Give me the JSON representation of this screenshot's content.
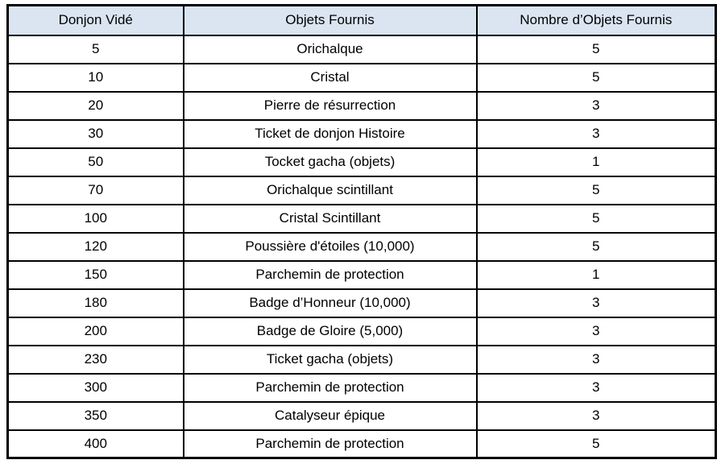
{
  "table": {
    "headers": [
      "Donjon Vidé",
      "Objets Fournis",
      "Nombre d’Objets Fournis"
    ],
    "rows": [
      [
        "5",
        "Orichalque",
        "5"
      ],
      [
        "10",
        "Cristal",
        "5"
      ],
      [
        "20",
        "Pierre de résurrection",
        "3"
      ],
      [
        "30",
        "Ticket de donjon Histoire",
        "3"
      ],
      [
        "50",
        "Tocket gacha (objets)",
        "1"
      ],
      [
        "70",
        "Orichalque scintillant",
        "5"
      ],
      [
        "100",
        "Cristal Scintillant",
        "5"
      ],
      [
        "120",
        "Poussière d'étoiles (10,000)",
        "5"
      ],
      [
        "150",
        "Parchemin de protection",
        "1"
      ],
      [
        "180",
        "Badge d’Honneur (10,000)",
        "3"
      ],
      [
        "200",
        "Badge de Gloire (5,000)",
        "3"
      ],
      [
        "230",
        "Ticket gacha (objets)",
        "3"
      ],
      [
        "300",
        "Parchemin de protection",
        "3"
      ],
      [
        "350",
        "Catalyseur épique",
        "3"
      ],
      [
        "400",
        "Parchemin de protection",
        "5"
      ]
    ],
    "colors": {
      "header_background": "#dbe5f1",
      "border": "#000000",
      "text": "#000000",
      "page_background": "#ffffff"
    }
  }
}
